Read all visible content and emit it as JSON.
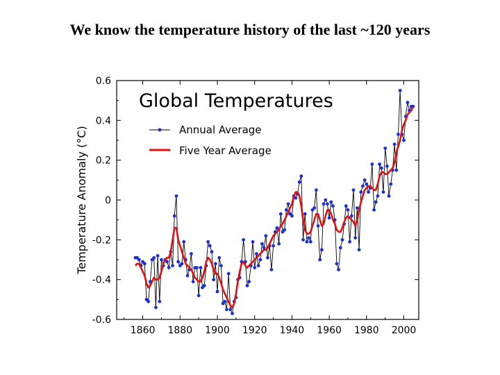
{
  "slide": {
    "title": "We know the temperature history of the last ~120 years"
  },
  "chart_data": {
    "type": "line",
    "title": "Global Temperatures",
    "xlabel": "",
    "ylabel": "Temperature Anomaly (°C)",
    "xlim": [
      1846,
      2008
    ],
    "ylim": [
      -0.6,
      0.6
    ],
    "x_ticks": [
      1860,
      1880,
      1900,
      1920,
      1940,
      1960,
      1980,
      2000
    ],
    "y_ticks": [
      0.6,
      0.4,
      0.2,
      0,
      -0.2,
      -0.4,
      -0.6
    ],
    "y_tick_labels": [
      "0.6",
      "0.4",
      "0.2",
      "0",
      "-0.2",
      "-0.4",
      "-0.6"
    ],
    "grid": false,
    "legend_position": "top-left",
    "colors": {
      "annual": "#1a2fd6",
      "annual_line": "#000000",
      "five_year": "#e01010"
    },
    "series": [
      {
        "name": "Annual Average",
        "style": "line-with-markers",
        "x": [
          1856,
          1857,
          1858,
          1859,
          1860,
          1861,
          1862,
          1863,
          1864,
          1865,
          1866,
          1867,
          1868,
          1869,
          1870,
          1871,
          1872,
          1873,
          1874,
          1875,
          1876,
          1877,
          1878,
          1879,
          1880,
          1881,
          1882,
          1883,
          1884,
          1885,
          1886,
          1887,
          1888,
          1889,
          1890,
          1891,
          1892,
          1893,
          1894,
          1895,
          1896,
          1897,
          1898,
          1899,
          1900,
          1901,
          1902,
          1903,
          1904,
          1905,
          1906,
          1907,
          1908,
          1909,
          1910,
          1911,
          1912,
          1913,
          1914,
          1915,
          1916,
          1917,
          1918,
          1919,
          1920,
          1921,
          1922,
          1923,
          1924,
          1925,
          1926,
          1927,
          1928,
          1929,
          1930,
          1931,
          1932,
          1933,
          1934,
          1935,
          1936,
          1937,
          1938,
          1939,
          1940,
          1941,
          1942,
          1943,
          1944,
          1945,
          1946,
          1947,
          1948,
          1949,
          1950,
          1951,
          1952,
          1953,
          1954,
          1955,
          1956,
          1957,
          1958,
          1959,
          1960,
          1961,
          1962,
          1963,
          1964,
          1965,
          1966,
          1967,
          1968,
          1969,
          1970,
          1971,
          1972,
          1973,
          1974,
          1975,
          1976,
          1977,
          1978,
          1979,
          1980,
          1981,
          1982,
          1983,
          1984,
          1985,
          1986,
          1987,
          1988,
          1989,
          1990,
          1991,
          1992,
          1993,
          1994,
          1995,
          1996,
          1997,
          1998,
          1999,
          2000,
          2001,
          2002,
          2003,
          2004,
          2005
        ],
        "values": [
          -0.29,
          -0.29,
          -0.3,
          -0.33,
          -0.31,
          -0.32,
          -0.5,
          -0.51,
          -0.41,
          -0.3,
          -0.29,
          -0.54,
          -0.28,
          -0.51,
          -0.3,
          -0.33,
          -0.3,
          -0.31,
          -0.34,
          -0.26,
          -0.33,
          -0.08,
          0.02,
          -0.31,
          -0.33,
          -0.32,
          -0.21,
          -0.3,
          -0.38,
          -0.35,
          -0.27,
          -0.41,
          -0.34,
          -0.34,
          -0.48,
          -0.34,
          -0.44,
          -0.43,
          -0.33,
          -0.21,
          -0.23,
          -0.26,
          -0.4,
          -0.32,
          -0.46,
          -0.29,
          -0.33,
          -0.52,
          -0.51,
          -0.55,
          -0.37,
          -0.55,
          -0.57,
          -0.51,
          -0.49,
          -0.4,
          -0.39,
          -0.31,
          -0.2,
          -0.31,
          -0.43,
          -0.41,
          -0.33,
          -0.21,
          -0.34,
          -0.27,
          -0.33,
          -0.3,
          -0.22,
          -0.24,
          -0.18,
          -0.29,
          -0.23,
          -0.35,
          -0.23,
          -0.16,
          -0.14,
          -0.22,
          -0.07,
          -0.16,
          -0.15,
          -0.05,
          -0.02,
          -0.07,
          -0.08,
          0.02,
          0.01,
          0.03,
          0.09,
          0.12,
          -0.2,
          -0.07,
          -0.21,
          -0.19,
          -0.21,
          -0.05,
          -0.04,
          0.05,
          -0.13,
          -0.3,
          -0.25,
          -0.02,
          0.0,
          -0.02,
          -0.09,
          -0.01,
          -0.03,
          -0.1,
          -0.32,
          -0.35,
          -0.24,
          -0.2,
          -0.12,
          -0.03,
          -0.05,
          -0.21,
          -0.08,
          0.05,
          -0.19,
          -0.04,
          -0.25,
          0.04,
          0.07,
          0.1,
          0.08,
          0.04,
          0.06,
          0.18,
          -0.05,
          -0.01,
          0.02,
          0.18,
          0.16,
          0.04,
          0.26,
          0.17,
          0.02,
          0.08,
          0.15,
          0.28,
          0.15,
          0.33,
          0.55,
          0.33,
          0.3,
          0.42,
          0.49,
          0.45,
          0.47,
          0.47
        ]
      },
      {
        "name": "Five Year Average",
        "style": "smoothed-line",
        "x": [
          1856,
          1857,
          1858,
          1859,
          1860,
          1861,
          1862,
          1863,
          1864,
          1865,
          1866,
          1867,
          1868,
          1869,
          1870,
          1871,
          1872,
          1873,
          1874,
          1875,
          1876,
          1877,
          1878,
          1879,
          1880,
          1881,
          1882,
          1883,
          1884,
          1885,
          1886,
          1887,
          1888,
          1889,
          1890,
          1891,
          1892,
          1893,
          1894,
          1895,
          1896,
          1897,
          1898,
          1899,
          1900,
          1901,
          1902,
          1903,
          1904,
          1905,
          1906,
          1907,
          1908,
          1909,
          1910,
          1911,
          1912,
          1913,
          1914,
          1915,
          1916,
          1917,
          1918,
          1919,
          1920,
          1921,
          1922,
          1923,
          1924,
          1925,
          1926,
          1927,
          1928,
          1929,
          1930,
          1931,
          1932,
          1933,
          1934,
          1935,
          1936,
          1937,
          1938,
          1939,
          1940,
          1941,
          1942,
          1943,
          1944,
          1945,
          1946,
          1947,
          1948,
          1949,
          1950,
          1951,
          1952,
          1953,
          1954,
          1955,
          1956,
          1957,
          1958,
          1959,
          1960,
          1961,
          1962,
          1963,
          1964,
          1965,
          1966,
          1967,
          1968,
          1969,
          1970,
          1971,
          1972,
          1973,
          1974,
          1975,
          1976,
          1977,
          1978,
          1979,
          1980,
          1981,
          1982,
          1983,
          1984,
          1985,
          1986,
          1987,
          1988,
          1989,
          1990,
          1991,
          1992,
          1993,
          1994,
          1995,
          1996,
          1997,
          1998,
          1999,
          2000,
          2001,
          2002,
          2003,
          2004,
          2005
        ],
        "values": [
          -0.33,
          -0.32,
          -0.32,
          -0.34,
          -0.36,
          -0.38,
          -0.42,
          -0.44,
          -0.43,
          -0.41,
          -0.39,
          -0.4,
          -0.4,
          -0.39,
          -0.36,
          -0.32,
          -0.3,
          -0.29,
          -0.29,
          -0.26,
          -0.2,
          -0.14,
          -0.14,
          -0.2,
          -0.23,
          -0.26,
          -0.29,
          -0.32,
          -0.33,
          -0.34,
          -0.35,
          -0.37,
          -0.39,
          -0.4,
          -0.41,
          -0.41,
          -0.39,
          -0.36,
          -0.31,
          -0.29,
          -0.3,
          -0.32,
          -0.35,
          -0.37,
          -0.37,
          -0.39,
          -0.42,
          -0.45,
          -0.47,
          -0.49,
          -0.51,
          -0.53,
          -0.54,
          -0.52,
          -0.47,
          -0.41,
          -0.36,
          -0.32,
          -0.31,
          -0.33,
          -0.34,
          -0.33,
          -0.32,
          -0.31,
          -0.3,
          -0.29,
          -0.28,
          -0.27,
          -0.26,
          -0.25,
          -0.25,
          -0.24,
          -0.22,
          -0.2,
          -0.18,
          -0.17,
          -0.16,
          -0.15,
          -0.13,
          -0.12,
          -0.1,
          -0.08,
          -0.06,
          -0.04,
          -0.02,
          0.02,
          0.04,
          0.04,
          0.02,
          -0.03,
          -0.1,
          -0.15,
          -0.17,
          -0.17,
          -0.16,
          -0.13,
          -0.1,
          -0.07,
          -0.07,
          -0.1,
          -0.13,
          -0.12,
          -0.08,
          -0.05,
          -0.05,
          -0.07,
          -0.1,
          -0.12,
          -0.15,
          -0.16,
          -0.16,
          -0.14,
          -0.11,
          -0.09,
          -0.08,
          -0.09,
          -0.1,
          -0.11,
          -0.13,
          -0.1,
          -0.05,
          -0.01,
          0.02,
          0.05,
          0.06,
          0.07,
          0.07,
          0.06,
          0.05,
          0.05,
          0.08,
          0.12,
          0.14,
          0.14,
          0.13,
          0.13,
          0.14,
          0.15,
          0.16,
          0.19,
          0.24,
          0.27,
          0.3,
          0.35,
          0.38,
          0.4,
          0.43,
          0.44,
          0.45,
          0.47
        ]
      }
    ]
  }
}
